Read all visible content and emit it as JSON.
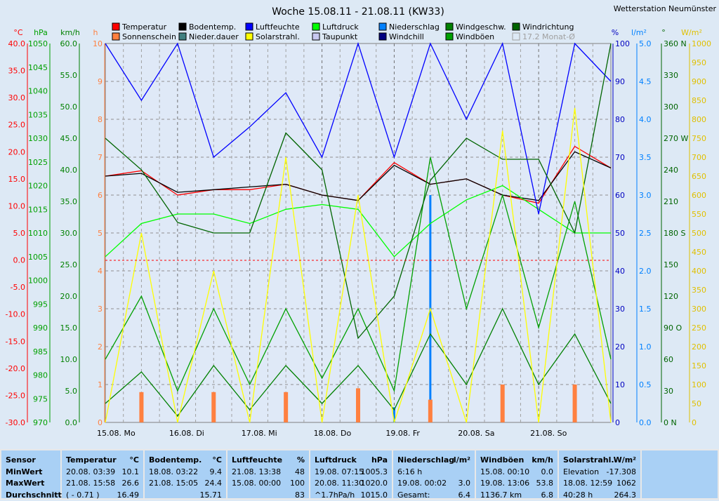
{
  "title": "Woche 15.08.11 - 21.08.11 (KW33)",
  "station": "Wetterstation Neumünster",
  "legend": [
    {
      "label": "Temperatur",
      "color": "#ff0000"
    },
    {
      "label": "Sonnenschein",
      "color": "#ff8040"
    },
    {
      "label": "Bodentemp.",
      "color": "#000000"
    },
    {
      "label": "Nieder.dauer",
      "color": "#408080"
    },
    {
      "label": "Luftfeuchte",
      "color": "#0000ff"
    },
    {
      "label": "Solarstrahl.",
      "color": "#ffff00"
    },
    {
      "label": "Luftdruck",
      "color": "#00ff00"
    },
    {
      "label": "Taupunkt",
      "color": "#c8c8f0"
    },
    {
      "label": "Niederschlag",
      "color": "#0080ff"
    },
    {
      "label": "Windchill",
      "color": "#000080"
    },
    {
      "label": "Windgeschw.",
      "color": "#008000"
    },
    {
      "label": "Windböen",
      "color": "#00a000"
    },
    {
      "label": "Windrichtung",
      "color": "#006400"
    },
    {
      "label": "17.2 Monat-Ø",
      "color": "#c0c0c0"
    }
  ],
  "axes_left": [
    {
      "unit": "°C",
      "color": "#ff0000",
      "ticks": [
        "40.0",
        "35.0",
        "30.0",
        "25.0",
        "20.0",
        "15.0",
        "10.0",
        "5.0",
        "0.0",
        "-5.0",
        "-10.0",
        "-15.0",
        "-20.0",
        "-25.0",
        "-30.0"
      ]
    },
    {
      "unit": "hPa",
      "color": "#00a000",
      "ticks": [
        "1050",
        "1045",
        "1040",
        "1035",
        "1030",
        "1025",
        "1020",
        "1015",
        "1010",
        "1005",
        "1000",
        "995",
        "990",
        "985",
        "980",
        "975",
        "970"
      ]
    },
    {
      "unit": "km/h",
      "color": "#008000",
      "ticks": [
        "60.0",
        "55.0",
        "50.0",
        "45.0",
        "40.0",
        "35.0",
        "30.0",
        "25.0",
        "20.0",
        "15.0",
        "10.0",
        "5.0",
        "0.0"
      ]
    },
    {
      "unit": "h",
      "color": "#ff8040",
      "ticks": [
        "10",
        "9",
        "8",
        "7",
        "6",
        "5",
        "4",
        "3",
        "2",
        "1",
        "0"
      ]
    }
  ],
  "axes_right": [
    {
      "unit": "%",
      "color": "#0000c0",
      "ticks": [
        "100",
        "90",
        "80",
        "70",
        "60",
        "50",
        "40",
        "30",
        "20",
        "10",
        "0"
      ]
    },
    {
      "unit": "l/m²",
      "color": "#0080ff",
      "ticks": [
        "5.0",
        "4.5",
        "4.0",
        "3.5",
        "3.0",
        "2.5",
        "2.0",
        "1.5",
        "1.0",
        "0.5",
        "0.0"
      ]
    },
    {
      "unit": "°",
      "color": "#006400",
      "ticks": [
        "360 N",
        "330",
        "300",
        "270 W",
        "240",
        "210",
        "180 S",
        "150",
        "120",
        "90 O",
        "60",
        "30",
        "0 N"
      ]
    },
    {
      "unit": "W/m²",
      "color": "#e0c000",
      "ticks": [
        "1000",
        "950",
        "900",
        "850",
        "800",
        "750",
        "700",
        "650",
        "600",
        "550",
        "500",
        "450",
        "400",
        "350",
        "300",
        "250",
        "200",
        "150",
        "100",
        "50",
        "0"
      ]
    }
  ],
  "x_ticks": [
    "15.08. Mo",
    "16.08. Di",
    "17.08. Mi",
    "18.08. Do",
    "19.08. Fr",
    "20.08. Sa",
    "21.08. So"
  ],
  "chart_data": {
    "type": "line",
    "title": "Woche 15.08.11 - 21.08.11 (KW33)",
    "x": [
      "15.08. 00:00",
      "15.08. 12:00",
      "16.08. 00:00",
      "16.08. 12:00",
      "17.08. 00:00",
      "17.08. 12:00",
      "18.08. 00:00",
      "18.08. 12:00",
      "19.08. 00:00",
      "19.08. 12:00",
      "20.08. 00:00",
      "20.08. 12:00",
      "21.08. 00:00",
      "21.08. 12:00",
      "21.08. 24:00"
    ],
    "series": [
      {
        "name": "Temperatur",
        "unit": "°C",
        "color": "#ff0000",
        "values": [
          15.5,
          16.5,
          12,
          13,
          13,
          14,
          12,
          11,
          18,
          14,
          15,
          12,
          10.5,
          21,
          17
        ]
      },
      {
        "name": "Bodentemp.",
        "unit": "°C",
        "color": "#000000",
        "values": [
          15.5,
          16,
          12.5,
          13,
          13.5,
          14,
          12,
          11,
          17.5,
          14,
          15,
          12,
          11,
          20,
          17
        ]
      },
      {
        "name": "Luftdruck",
        "unit": "hPa",
        "color": "#00ff00",
        "values": [
          1005,
          1012,
          1014,
          1014,
          1012,
          1015,
          1016,
          1015,
          1005,
          1012,
          1017,
          1020,
          1015,
          1010,
          1010
        ]
      },
      {
        "name": "Luftfeuchte",
        "unit": "%",
        "color": "#0000ff",
        "values": [
          100,
          85,
          100,
          70,
          78,
          87,
          70,
          100,
          70,
          100,
          80,
          100,
          55,
          100,
          90
        ]
      },
      {
        "name": "Windgeschw.",
        "unit": "km/h",
        "color": "#008000",
        "values": [
          3,
          8,
          1,
          9,
          2,
          9,
          3,
          9,
          2,
          14,
          6,
          18,
          6,
          14,
          3
        ]
      },
      {
        "name": "Windböen",
        "unit": "km/h",
        "color": "#00a000",
        "values": [
          10,
          20,
          5,
          18,
          6,
          18,
          7,
          18,
          5,
          42,
          18,
          36,
          15,
          35,
          10
        ]
      },
      {
        "name": "Windrichtung",
        "unit": "°",
        "color": "#006400",
        "values": [
          270,
          240,
          190,
          180,
          180,
          275,
          240,
          80,
          120,
          230,
          270,
          250,
          250,
          180,
          360
        ]
      },
      {
        "name": "Solarstrahl.",
        "unit": "W/m²",
        "color": "#ffff00",
        "values": [
          0,
          500,
          0,
          400,
          0,
          700,
          0,
          600,
          0,
          300,
          0,
          770,
          0,
          830,
          0
        ]
      },
      {
        "name": "Niederschlag",
        "unit": "l/m²",
        "color": "#0080ff",
        "values": [
          0,
          0,
          0,
          0.2,
          0,
          0,
          0,
          0,
          0.2,
          3.0,
          0,
          0.2,
          0,
          0.2,
          0
        ]
      },
      {
        "name": "Sonnenschein",
        "unit": "h",
        "color": "#ff8040",
        "values": [
          0,
          0.8,
          0,
          0.8,
          0,
          0.8,
          0,
          0.9,
          0,
          0.6,
          0,
          1.0,
          0,
          1.0,
          0
        ]
      }
    ],
    "y_ranges": {
      "°C": [
        -30,
        40
      ],
      "hPa": [
        970,
        1050
      ],
      "km/h": [
        0,
        60
      ],
      "h": [
        0,
        10
      ],
      "%": [
        0,
        100
      ],
      "l/m²": [
        0,
        5
      ],
      "°": [
        0,
        360
      ],
      "W/m²": [
        0,
        1000
      ]
    },
    "grid": true,
    "legend_position": "top"
  },
  "stats": {
    "sensor": {
      "title": "Sensor",
      "rows": [
        "MinWert",
        "MaxWert",
        "Durchschnitt"
      ]
    },
    "temperature": {
      "title": "Temperatur",
      "unit": "°C",
      "rows": [
        [
          "20.08.  03:39",
          "10.1"
        ],
        [
          "21.08.  15:58",
          "26.6"
        ],
        [
          "( - 0.71 )",
          "16.49"
        ]
      ]
    },
    "soil": {
      "title": "Bodentemp.",
      "unit": "°C",
      "rows": [
        [
          "18.08.  03:22",
          "9.4"
        ],
        [
          "21.08.  15:05",
          "24.4"
        ],
        [
          "",
          "15.71"
        ]
      ]
    },
    "humidity": {
      "title": "Luftfeuchte",
      "unit": "%",
      "rows": [
        [
          "21.08.  13:38",
          "48"
        ],
        [
          "15.08.  00:00",
          "100"
        ],
        [
          "",
          "83"
        ]
      ]
    },
    "pressure": {
      "title": "Luftdruck",
      "unit": "hPa",
      "rows": [
        [
          "19.08.  07:15",
          "1005.3"
        ],
        [
          "20.08.  11:30",
          "1020.0"
        ],
        [
          "^1.7hPa/h",
          "1015.0"
        ]
      ]
    },
    "rain": {
      "title": "Niederschlag",
      "unit": "l/m²",
      "rows": [
        [
          "6:16 h",
          ""
        ],
        [
          "19.08.  00:02",
          "3.0"
        ],
        [
          "Gesamt:",
          "6.4"
        ]
      ]
    },
    "gusts": {
      "title": "Windböen",
      "unit": "km/h",
      "rows": [
        [
          "15.08.  00:10",
          "0.0"
        ],
        [
          "19.08.  13:06",
          "53.8"
        ],
        [
          "1136.7 km",
          "6.8"
        ]
      ]
    },
    "solar": {
      "title": "Solarstrahl.",
      "unit": "W/m²",
      "rows": [
        [
          "Elevation",
          "-17.308"
        ],
        [
          "18.08.  12:59",
          "1062"
        ],
        [
          "40:28 h",
          "264.3"
        ]
      ]
    }
  }
}
